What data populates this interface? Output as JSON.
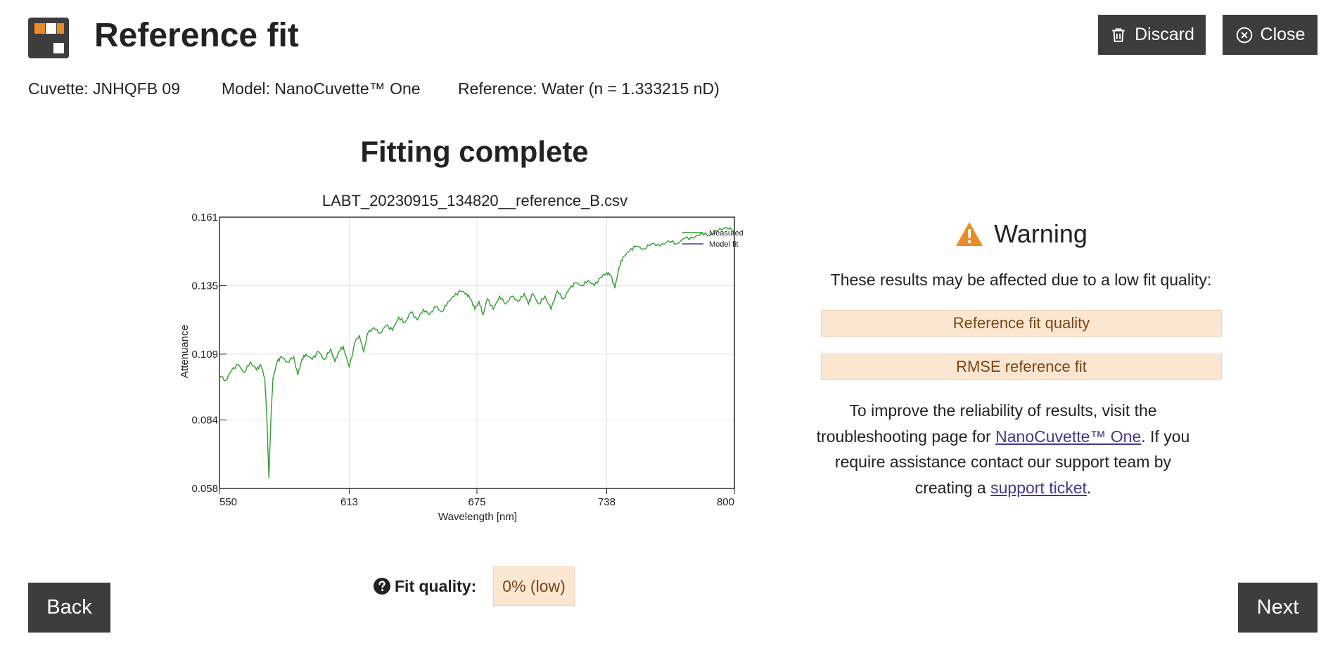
{
  "header": {
    "title": "Reference fit",
    "discard_label": "Discard",
    "close_label": "Close"
  },
  "meta": {
    "cuvette": "Cuvette: JNHQFB 09",
    "model": "Model: NanoCuvette™ One",
    "reference": "Reference: Water (n = 1.333215 nD)"
  },
  "status_heading": "Fitting complete",
  "chart_data": {
    "type": "line",
    "title": "LABT_20230915_134820__reference_B.csv",
    "xlabel": "Wavelength [nm]",
    "ylabel": "Attenuance",
    "xlim": [
      550,
      800
    ],
    "ylim": [
      0.058,
      0.161
    ],
    "xticks": [
      "550",
      "613",
      "675",
      "738",
      "800"
    ],
    "yticks": [
      "0.161",
      "0.135",
      "0.109",
      "0.084",
      "0.058"
    ],
    "grid": true,
    "legend_position": "top-right",
    "series": [
      {
        "name": "Measured",
        "color": "#2e9e2e",
        "x": [
          550,
          553,
          556,
          559,
          562,
          565,
          568,
          570,
          572,
          573,
          574,
          575,
          576,
          578,
          580,
          583,
          586,
          588,
          590,
          592,
          595,
          598,
          601,
          604,
          606,
          608,
          610,
          613,
          616,
          618,
          620,
          622,
          625,
          628,
          631,
          634,
          637,
          640,
          643,
          646,
          649,
          652,
          655,
          658,
          661,
          664,
          667,
          670,
          672,
          674,
          676,
          678,
          680,
          683,
          686,
          689,
          692,
          695,
          698,
          700,
          702,
          705,
          708,
          711,
          714,
          717,
          720,
          723,
          726,
          729,
          732,
          735,
          738,
          740,
          742,
          744,
          746,
          749,
          752,
          756,
          760,
          764,
          768,
          772,
          776,
          780,
          784,
          788,
          792,
          796,
          800
        ],
        "values": [
          0.101,
          0.099,
          0.103,
          0.105,
          0.102,
          0.106,
          0.103,
          0.105,
          0.1,
          0.085,
          0.062,
          0.085,
          0.1,
          0.106,
          0.108,
          0.106,
          0.108,
          0.101,
          0.107,
          0.109,
          0.107,
          0.11,
          0.107,
          0.111,
          0.106,
          0.11,
          0.112,
          0.104,
          0.114,
          0.116,
          0.11,
          0.117,
          0.119,
          0.117,
          0.12,
          0.118,
          0.123,
          0.121,
          0.125,
          0.122,
          0.126,
          0.124,
          0.127,
          0.125,
          0.129,
          0.131,
          0.133,
          0.132,
          0.13,
          0.126,
          0.129,
          0.124,
          0.13,
          0.126,
          0.131,
          0.128,
          0.131,
          0.129,
          0.132,
          0.128,
          0.132,
          0.128,
          0.131,
          0.126,
          0.133,
          0.13,
          0.134,
          0.136,
          0.135,
          0.137,
          0.135,
          0.138,
          0.14,
          0.139,
          0.134,
          0.142,
          0.146,
          0.148,
          0.15,
          0.149,
          0.151,
          0.15,
          0.152,
          0.151,
          0.153,
          0.153,
          0.155,
          0.154,
          0.156,
          0.157,
          0.156
        ]
      },
      {
        "name": "Model fit",
        "color": "#3a3aa0",
        "x": [],
        "values": []
      }
    ]
  },
  "warning": {
    "title": "Warning",
    "text": "These results may be affected due to a low fit quality:",
    "items": [
      "Reference fit quality",
      "RMSE reference fit"
    ],
    "improve_prefix": "To improve the reliability of results, visit the troubleshooting page for ",
    "improve_link1": "NanoCuvette™ One",
    "improve_middle": ". If you require assistance contact our support team by creating a ",
    "improve_link2": "support ticket",
    "improve_suffix": "."
  },
  "fit_quality": {
    "label": "Fit quality:",
    "value": "0% (low)"
  },
  "nav": {
    "back_label": "Back",
    "next_label": "Next"
  },
  "colors": {
    "dark_button": "#3d3d3d",
    "accent_orange": "#ee8a22",
    "warning_bg": "#fbe6d2",
    "warning_text": "#7a4612",
    "link": "#3f3a94"
  },
  "icons": {
    "logo": "app-logo-icon",
    "discard": "trash-icon",
    "close": "close-circle-icon",
    "warning": "warning-triangle-icon",
    "help": "question-circle-icon"
  }
}
